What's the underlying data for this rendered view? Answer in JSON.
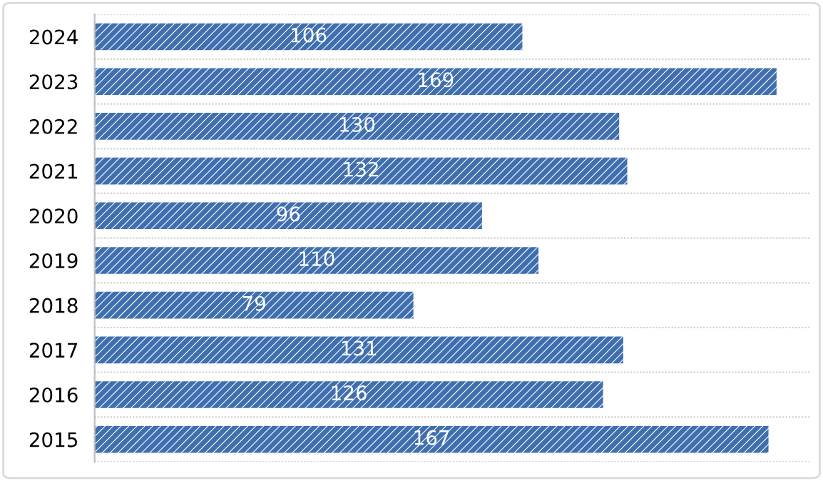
{
  "chart_data": {
    "type": "bar",
    "orientation": "horizontal",
    "categories": [
      "2024",
      "2023",
      "2022",
      "2021",
      "2020",
      "2019",
      "2018",
      "2017",
      "2016",
      "2015"
    ],
    "values": [
      106,
      169,
      130,
      132,
      96,
      110,
      79,
      131,
      126,
      167
    ],
    "color": "#3f6fb0",
    "data_labels": true,
    "grid": "y"
  }
}
